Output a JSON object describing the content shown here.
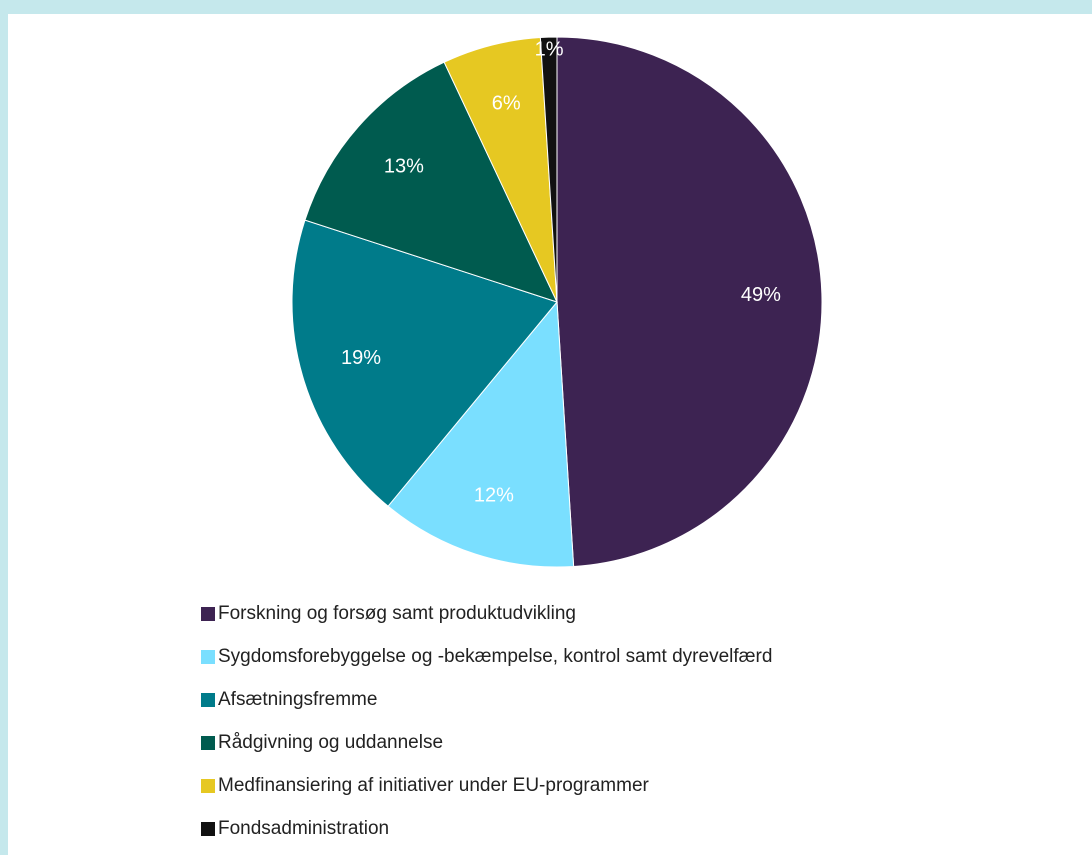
{
  "chart_data": {
    "type": "pie",
    "categories": [
      "Forskning og forsøg samt produktudvikling",
      "Sygdomsforebyggelse og -bekæmpelse, kontrol samt dyrevelfærd",
      "Afsætningsfremme",
      "Rådgivning og uddannelse",
      "Medfinansiering af initiativer under EU-programmer",
      "Fondsadministration"
    ],
    "values": [
      49,
      12,
      19,
      13,
      6,
      1
    ],
    "value_labels": [
      "49%",
      "12%",
      "19%",
      "13%",
      "6%",
      "1%"
    ],
    "colors": [
      "#3d2352",
      "#7adfff",
      "#007b8a",
      "#005b4f",
      "#e6c822",
      "#111111"
    ]
  }
}
